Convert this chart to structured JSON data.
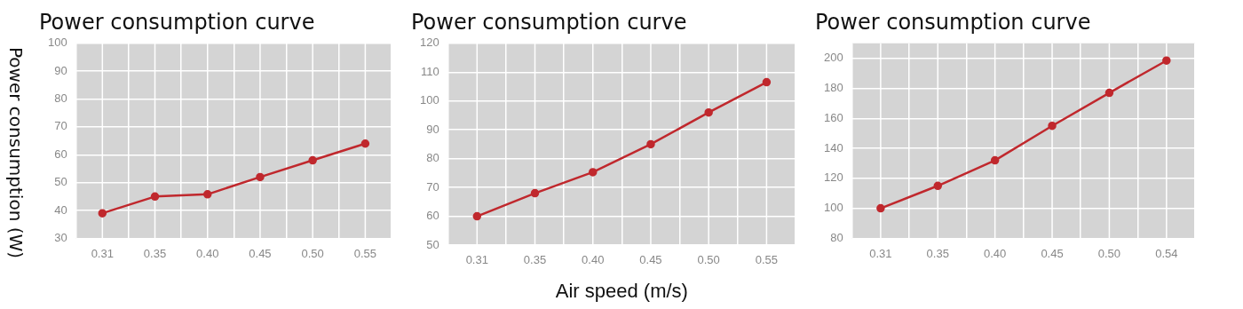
{
  "chart_data": [
    {
      "type": "line",
      "title": "Power consumption curve",
      "ylabel": "Power consumption (W)",
      "categories": [
        "0.31",
        "0.35",
        "0.40",
        "0.45",
        "0.50",
        "0.55"
      ],
      "series": [
        {
          "color": "#c0282d",
          "values": [
            39,
            45,
            45.8,
            52,
            58,
            64
          ]
        }
      ],
      "ylim": [
        30,
        100
      ],
      "yticks": [
        30,
        40,
        50,
        60,
        70,
        80,
        90,
        100
      ],
      "grid": true,
      "marker": "circle",
      "legend": false
    },
    {
      "type": "line",
      "title": "Power consumption curve",
      "xlabel": "Air speed (m/s)",
      "categories": [
        "0.31",
        "0.35",
        "0.40",
        "0.45",
        "0.50",
        "0.55"
      ],
      "series": [
        {
          "color": "#c0282d",
          "values": [
            60,
            68,
            75.3,
            85,
            96,
            106.5
          ]
        }
      ],
      "ylim": [
        50,
        120
      ],
      "yticks": [
        50,
        60,
        70,
        80,
        90,
        100,
        110,
        120
      ],
      "grid": true,
      "marker": "circle",
      "legend": false
    },
    {
      "type": "line",
      "title": "Power consumption curve",
      "categories": [
        "0.31",
        "0.35",
        "0.40",
        "0.45",
        "0.50",
        "0.54"
      ],
      "series": [
        {
          "color": "#c0282d",
          "values": [
            100,
            115,
            132,
            155,
            177,
            198.5
          ]
        }
      ],
      "ylim": [
        80,
        210
      ],
      "yticks": [
        80,
        100,
        120,
        140,
        160,
        180,
        200
      ],
      "grid": true,
      "marker": "circle",
      "legend": false
    }
  ]
}
